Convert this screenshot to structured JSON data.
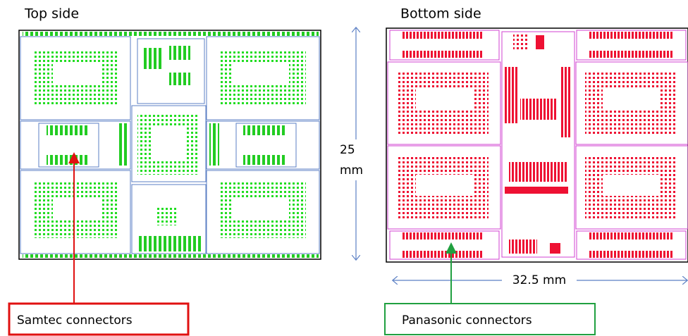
{
  "labels": {
    "top_side": "Top side",
    "bottom_side": "Bottom side",
    "height_value": "25",
    "height_unit": "mm",
    "width": "32.5 mm"
  },
  "callouts": [
    {
      "label": "Samtec connectors"
    },
    {
      "label": "Panasonic connectors"
    }
  ]
}
